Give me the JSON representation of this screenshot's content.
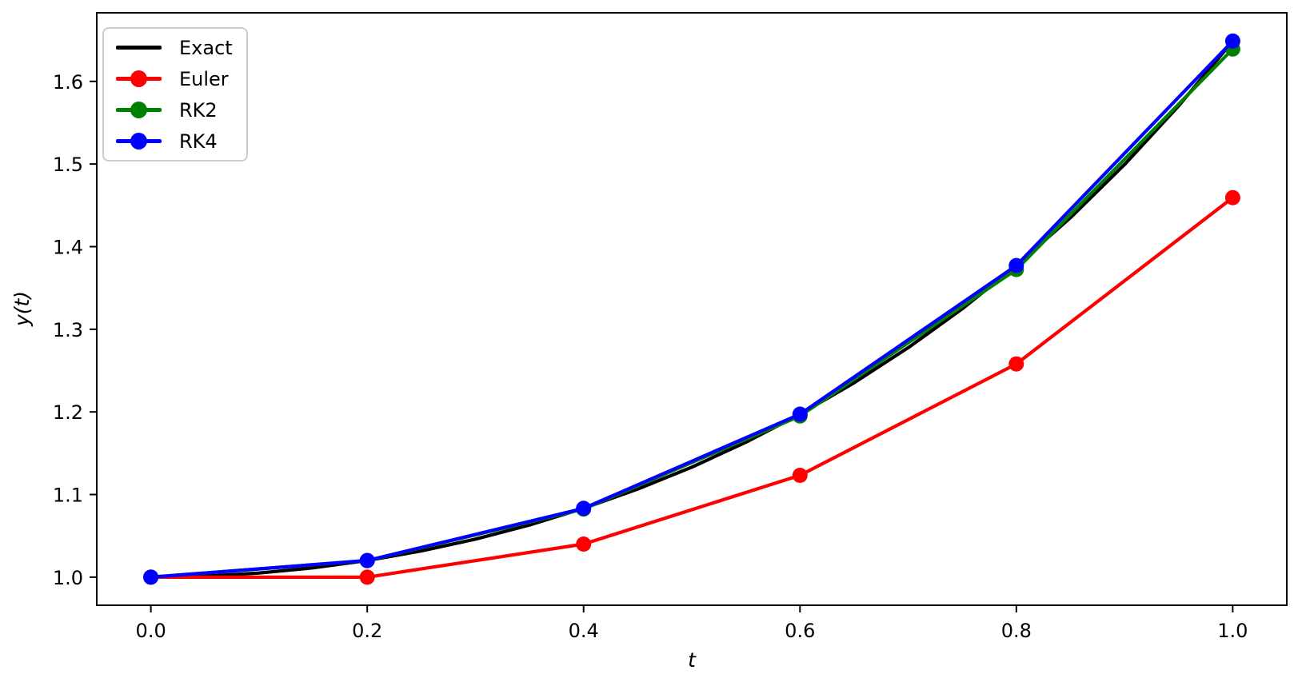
{
  "chart_data": {
    "type": "line",
    "title": "",
    "xlabel": "t",
    "ylabel": "y(t)",
    "xlim": [
      -0.05,
      1.05
    ],
    "ylim": [
      0.966,
      1.683
    ],
    "grid": false,
    "legend_position": "upper left",
    "background": "#ffffff",
    "axis_color": "#000000",
    "xticks": {
      "values": [
        0.0,
        0.2,
        0.4,
        0.6,
        0.8,
        1.0
      ],
      "labels": [
        "0.0",
        "0.2",
        "0.4",
        "0.6",
        "0.8",
        "1.0"
      ]
    },
    "yticks": {
      "values": [
        1.0,
        1.1,
        1.2,
        1.3,
        1.4,
        1.5,
        1.6
      ],
      "labels": [
        "1.0",
        "1.1",
        "1.2",
        "1.3",
        "1.4",
        "1.5",
        "1.6"
      ]
    },
    "x": [
      0.0,
      0.2,
      0.4,
      0.6,
      0.8,
      1.0
    ],
    "series": [
      {
        "name": "Exact",
        "color": "#000000",
        "marker": "none",
        "values": [
          1.0,
          1.0202,
          1.08329,
          1.19722,
          1.37713,
          1.64872
        ],
        "smooth_x": [
          0.0,
          0.05,
          0.1,
          0.15,
          0.2,
          0.25,
          0.3,
          0.35,
          0.4,
          0.45,
          0.5,
          0.55,
          0.6,
          0.65,
          0.7,
          0.75,
          0.8,
          0.85,
          0.9,
          0.95,
          1.0
        ],
        "smooth_y": [
          1.0,
          1.00125,
          1.00501,
          1.01131,
          1.0202,
          1.03174,
          1.04603,
          1.06316,
          1.08329,
          1.10655,
          1.13315,
          1.16329,
          1.19722,
          1.23522,
          1.27762,
          1.32479,
          1.37713,
          1.43512,
          1.4993,
          1.57027,
          1.64872
        ]
      },
      {
        "name": "Euler",
        "color": "#ff0000",
        "marker": "circle",
        "values": [
          1.0,
          1.0,
          1.04,
          1.1232,
          1.25798,
          1.45926
        ]
      },
      {
        "name": "RK2",
        "color": "#008000",
        "marker": "circle",
        "values": [
          1.0,
          1.02,
          1.08242,
          1.195,
          1.37233,
          1.63912
        ]
      },
      {
        "name": "RK4",
        "color": "#0000ff",
        "marker": "circle",
        "values": [
          1.0,
          1.0202,
          1.08329,
          1.19722,
          1.37713,
          1.64872
        ]
      }
    ]
  }
}
